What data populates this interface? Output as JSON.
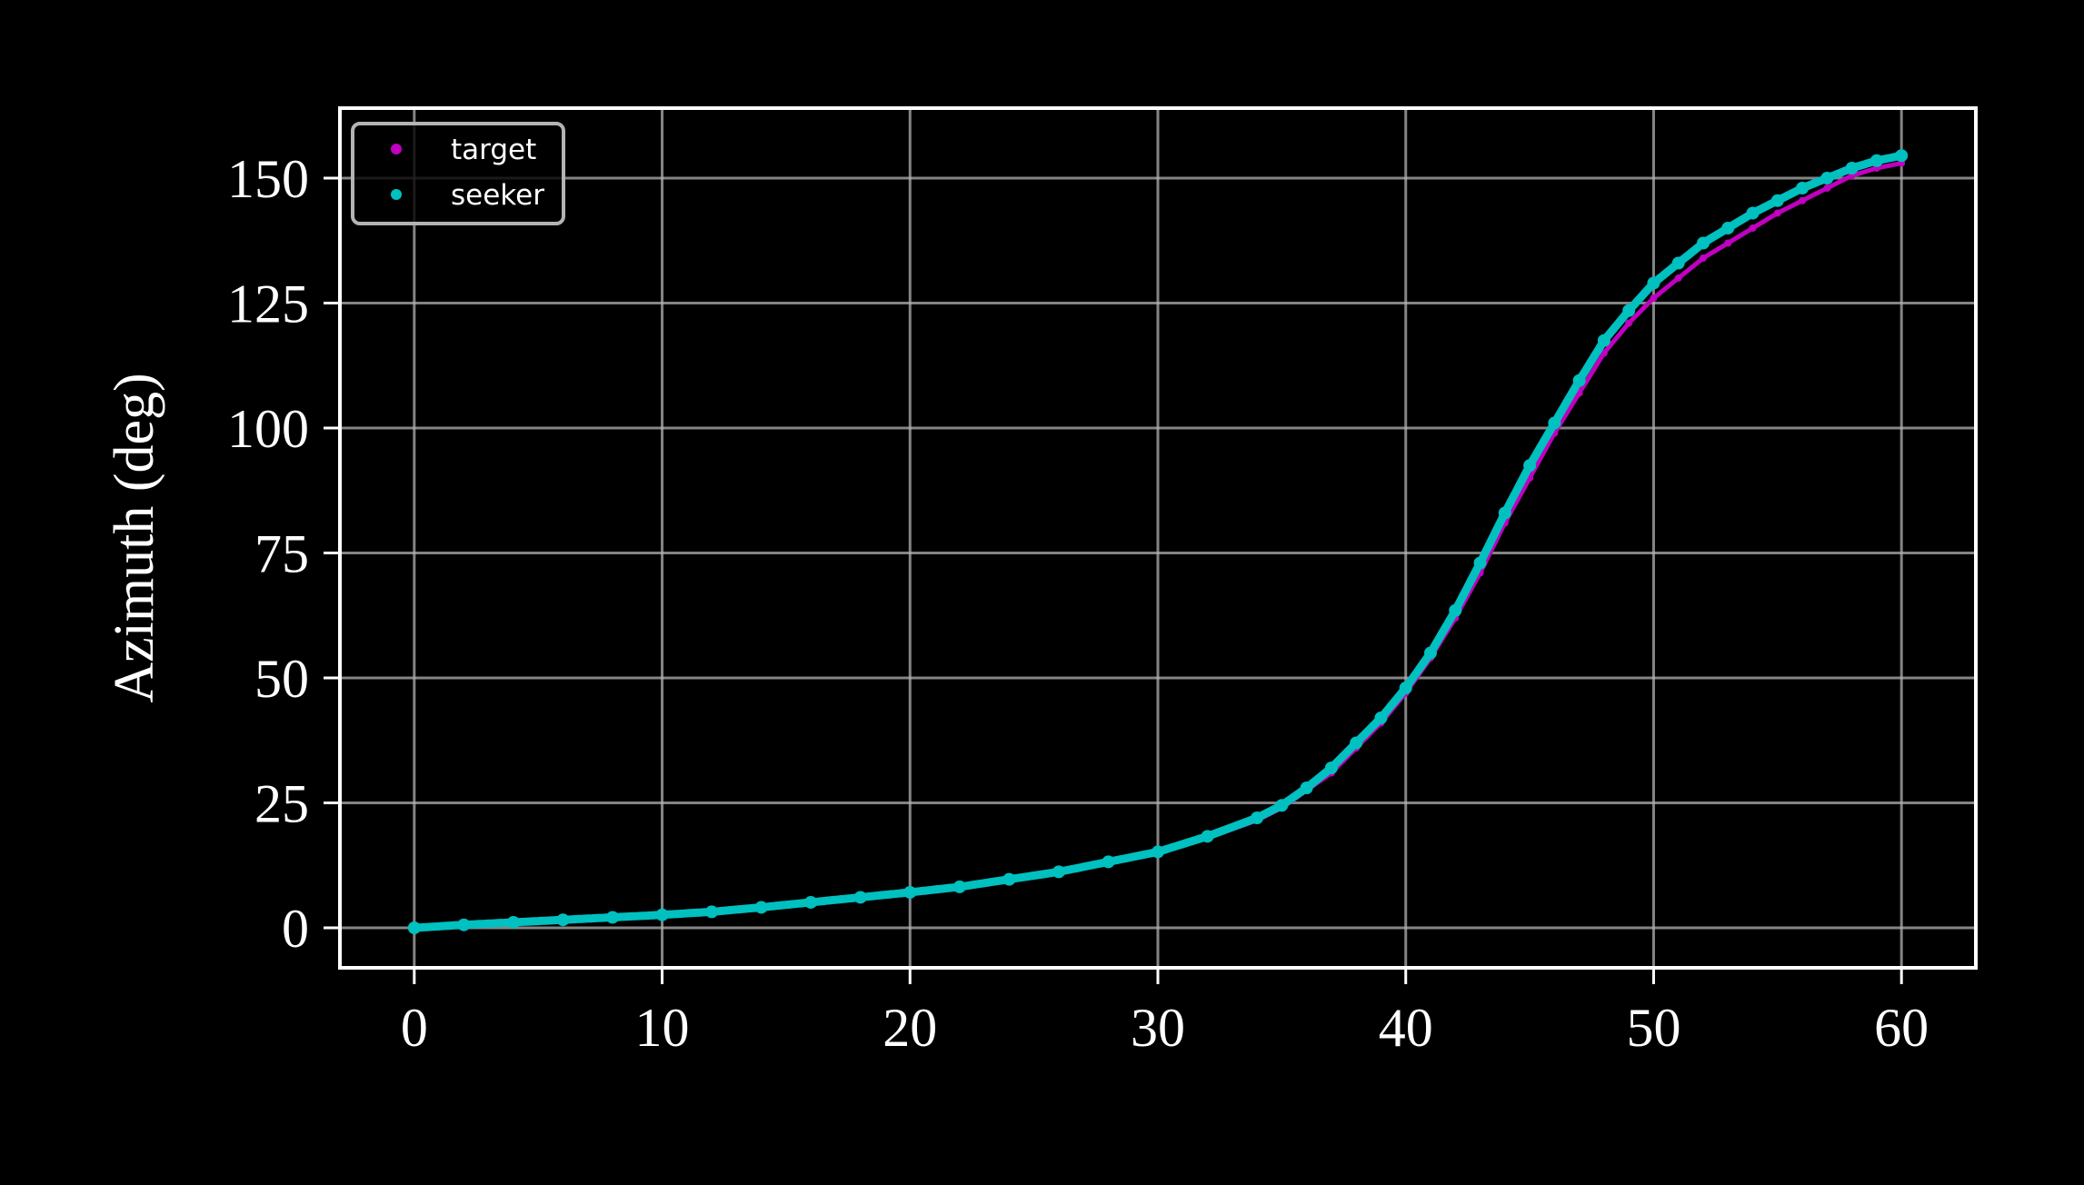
{
  "chart_data": {
    "type": "scatter",
    "title": "",
    "xlabel": "",
    "ylabel": "Azimuth (deg)",
    "xlim": [
      -3,
      63
    ],
    "ylim": [
      -8,
      164
    ],
    "grid": true,
    "legend_position": "top-left",
    "x_ticks": [
      0,
      10,
      20,
      30,
      40,
      50,
      60
    ],
    "x_tick_labels": [
      "0",
      "10",
      "20",
      "30",
      "40",
      "50",
      "60"
    ],
    "y_ticks": [
      0,
      25,
      50,
      75,
      100,
      125,
      150
    ],
    "y_tick_labels": [
      "0",
      "25",
      "50",
      "75",
      "100",
      "125",
      "150"
    ],
    "series": [
      {
        "name": "target",
        "color": "#c000c0",
        "x": [
          0,
          2,
          4,
          6,
          8,
          10,
          12,
          14,
          16,
          18,
          20,
          22,
          24,
          26,
          28,
          30,
          32,
          34,
          35,
          36,
          37,
          38,
          39,
          40,
          41,
          42,
          43,
          44,
          45,
          46,
          47,
          48,
          49,
          50,
          51,
          52,
          53,
          54,
          55,
          56,
          57,
          58,
          59,
          60
        ],
        "y": [
          0,
          0.5,
          1,
          1.5,
          2,
          2.5,
          3,
          4,
          5,
          6,
          7,
          8,
          9.5,
          11,
          13,
          15,
          18,
          21.5,
          24,
          27.5,
          31,
          36,
          41,
          47,
          54,
          62,
          71,
          81,
          90,
          99,
          107,
          115,
          121,
          126,
          130,
          134,
          137,
          140,
          143,
          145.5,
          148,
          150.5,
          152,
          153
        ]
      },
      {
        "name": "seeker",
        "color": "#00c0c0",
        "x": [
          0,
          2,
          4,
          6,
          8,
          10,
          12,
          14,
          16,
          18,
          20,
          22,
          24,
          26,
          28,
          30,
          32,
          34,
          35,
          36,
          37,
          38,
          39,
          40,
          41,
          42,
          43,
          44,
          45,
          46,
          47,
          48,
          49,
          50,
          51,
          52,
          53,
          54,
          55,
          56,
          57,
          58,
          59,
          60
        ],
        "y": [
          0,
          0.6,
          1.1,
          1.6,
          2.1,
          2.6,
          3.2,
          4.1,
          5.1,
          6.1,
          7.1,
          8.2,
          9.7,
          11.2,
          13.2,
          15.2,
          18.3,
          22,
          24.5,
          28,
          32,
          37,
          42,
          48,
          55,
          63.5,
          73,
          83,
          92.5,
          101,
          109.5,
          117.5,
          123.5,
          129,
          133,
          137,
          140,
          143,
          145.5,
          148,
          150,
          152,
          153.5,
          154.5
        ]
      }
    ]
  }
}
